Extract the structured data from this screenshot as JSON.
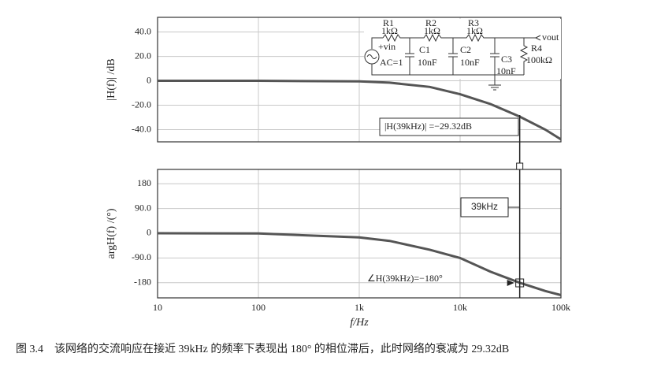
{
  "chart_data": [
    {
      "type": "line",
      "ylabel": "|H(f)| /dB",
      "x": [
        10,
        100,
        1000,
        2000,
        5000,
        10000,
        20000,
        39000,
        70000,
        100000
      ],
      "series": [
        {
          "name": "|H(f)|",
          "color": "#555555",
          "values": [
            0,
            0,
            -0.5,
            -1.5,
            -5,
            -11,
            -19,
            -29.32,
            -40,
            -48
          ]
        }
      ],
      "xlim": [
        10,
        100000
      ],
      "log_x": true,
      "xticks": [
        10,
        100,
        {
          "value": 1000,
          "label": "1k"
        },
        {
          "value": 10000,
          "label": "10k"
        },
        {
          "value": 100000,
          "label": "100k"
        }
      ],
      "ylim": [
        -50,
        52
      ],
      "yticks": [
        {
          "value": 40,
          "label": "40.0"
        },
        {
          "value": 20,
          "label": "20.0"
        },
        0,
        {
          "value": -20,
          "label": "-20.0"
        },
        {
          "value": -40,
          "label": "-40.0"
        }
      ],
      "grid": true,
      "annotation": "|H(39kHz)| =−29.32dB"
    },
    {
      "type": "line",
      "ylabel": "argH(f) /(°)",
      "xlabel": "f/Hz",
      "x": [
        10,
        100,
        1000,
        2000,
        5000,
        10000,
        20000,
        39000,
        70000,
        100000
      ],
      "series": [
        {
          "name": "argH(f)",
          "color": "#555555",
          "values": [
            0,
            -1,
            -15,
            -28,
            -60,
            -90,
            -140,
            -180,
            -210,
            -225
          ]
        }
      ],
      "xlim": [
        10,
        100000
      ],
      "log_x": true,
      "xticks": [
        10,
        100,
        {
          "value": 1000,
          "label": "1k"
        },
        {
          "value": 10000,
          "label": "10k"
        },
        {
          "value": 100000,
          "label": "100k"
        }
      ],
      "ylim": [
        -235,
        232
      ],
      "yticks": [
        180,
        {
          "value": 90,
          "label": "90.0"
        },
        0,
        {
          "value": -90,
          "label": "-90.0"
        },
        -180
      ],
      "grid": true,
      "cursor": {
        "x": 39000,
        "label": "39kHz"
      },
      "annotation": "∠H(39kHz)=−180°"
    }
  ],
  "circuit": {
    "r1": "R1",
    "r1_value": "1kΩ",
    "r2": "R2",
    "r2_value": "1kΩ",
    "r3": "R3",
    "r3_value": "1kΩ",
    "c1": "C1",
    "c1_value": "10nF",
    "c2": "C2",
    "c2_value": "10nF",
    "c3": "C3",
    "c3_value": "10nF",
    "r4": "R4",
    "r4_value": "100kΩ",
    "source": "+vin",
    "source_value": "AC=1",
    "output": "vout"
  },
  "caption": "图 3.4　该网络的交流响应在接近 39kHz 的频率下表现出 180° 的相位滞后，此时网络的衰减为 29.32dB"
}
